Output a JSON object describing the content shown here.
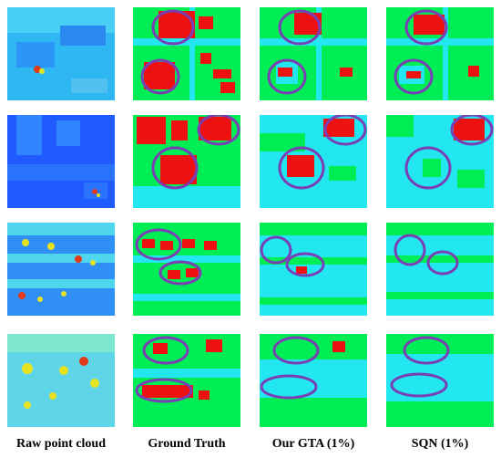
{
  "columns": [
    {
      "key": "raw",
      "label": "Raw point cloud"
    },
    {
      "key": "gt",
      "label": "Ground Truth"
    },
    {
      "key": "gta",
      "label": "Our GTA (1%)"
    },
    {
      "key": "sqn",
      "label": "SQN (1%)"
    }
  ],
  "colors": {
    "ground": "#00ee55",
    "vegetation": "#22e6f0",
    "building": "#ee1111",
    "highlight_ellipse": "#7a3fb5",
    "raw_low": "#1f5bff",
    "raw_mid": "#2fc8ff",
    "raw_high": "#e7e21f",
    "raw_peak": "#e33b1a"
  }
}
